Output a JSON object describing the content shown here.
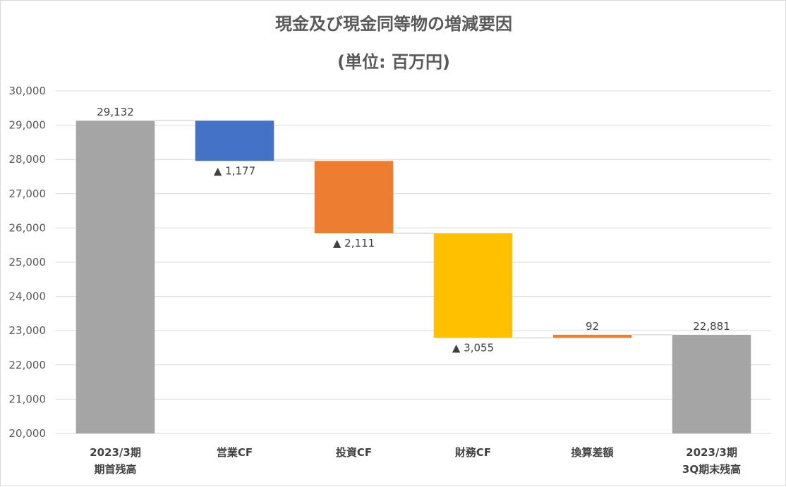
{
  "chart_data": {
    "type": "waterfall",
    "title": "現金及び現金同等物の増減要因",
    "subtitle": "(単位: 百万円)",
    "ylim": [
      20000,
      30000
    ],
    "yticks": [
      "20,000",
      "21,000",
      "22,000",
      "23,000",
      "24,000",
      "25,000",
      "26,000",
      "27,000",
      "28,000",
      "29,000",
      "30,000"
    ],
    "ytick_values": [
      20000,
      21000,
      22000,
      23000,
      24000,
      25000,
      26000,
      27000,
      28000,
      29000,
      30000
    ],
    "grid": true,
    "categories": [
      [
        "2023/3期",
        "期首残高"
      ],
      [
        "営業CF"
      ],
      [
        "投資CF"
      ],
      [
        "財務CF"
      ],
      [
        "換算差額"
      ],
      [
        "2023/3期",
        "3Q期末残高"
      ]
    ],
    "bars": [
      {
        "kind": "total",
        "start": 20000,
        "end": 29132,
        "label": "29,132",
        "color": "#a5a5a5"
      },
      {
        "kind": "decrease",
        "start": 29132,
        "end": 27955,
        "label": "▲ 1,177",
        "color": "#4472c4"
      },
      {
        "kind": "decrease",
        "start": 27955,
        "end": 25844,
        "label": "▲ 2,111",
        "color": "#ed7d31"
      },
      {
        "kind": "decrease",
        "start": 25844,
        "end": 22789,
        "label": "▲ 3,055",
        "color": "#ffc000"
      },
      {
        "kind": "increase",
        "start": 22789,
        "end": 22881,
        "label": "92",
        "color": "#ed7d31"
      },
      {
        "kind": "total",
        "start": 20000,
        "end": 22881,
        "label": "22,881",
        "color": "#a5a5a5"
      }
    ]
  }
}
